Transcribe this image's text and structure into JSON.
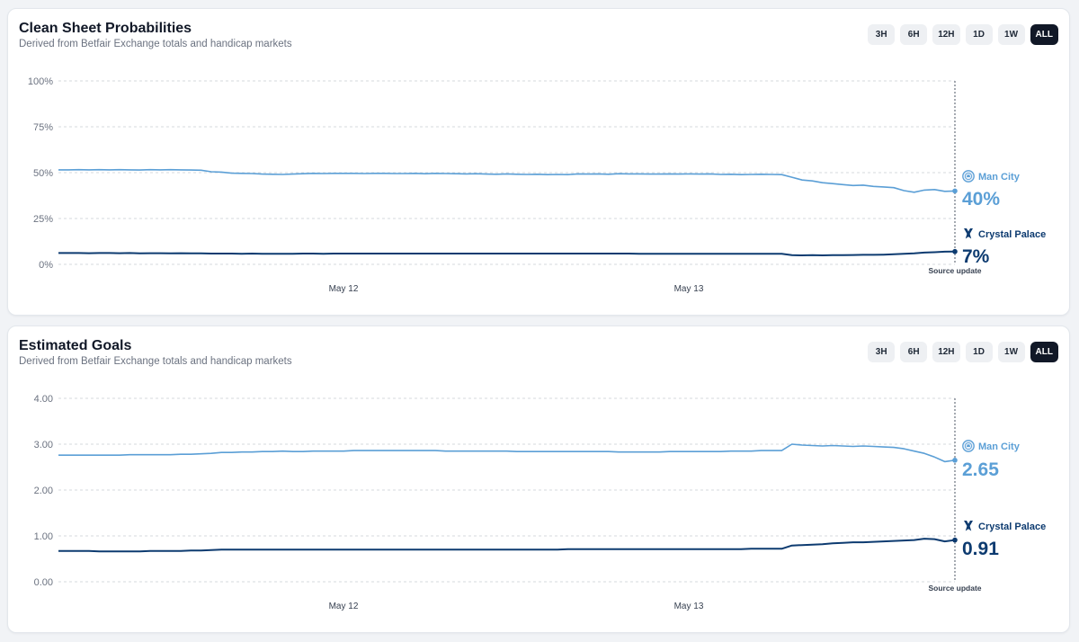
{
  "panels": [
    {
      "title": "Clean Sheet Probabilities",
      "subtitle": "Derived from Betfair Exchange totals and handicap markets",
      "ranges": [
        "3H",
        "6H",
        "12H",
        "1D",
        "1W",
        "ALL"
      ],
      "active_range": "ALL"
    },
    {
      "title": "Estimated Goals",
      "subtitle": "Derived from Betfair Exchange totals and handicap markets",
      "ranges": [
        "3H",
        "6H",
        "12H",
        "1D",
        "1W",
        "ALL"
      ],
      "active_range": "ALL"
    }
  ],
  "chart_data": [
    {
      "type": "line",
      "title": "Clean Sheet Probabilities",
      "subtitle": "Derived from Betfair Exchange totals and handicap markets",
      "x_ticks": [
        "May 12",
        "May 13"
      ],
      "y_ticks": [
        "0%",
        "25%",
        "50%",
        "75%",
        "100%"
      ],
      "ylim": [
        0,
        100
      ],
      "grid": true,
      "marker_label": "Source update",
      "series": [
        {
          "name": "Man City",
          "color": "#5b9fd6",
          "icon": "man-city-crest-icon",
          "current_label": "40%",
          "values": [
            51.5,
            51.5,
            51.6,
            51.5,
            51.6,
            51.5,
            51.6,
            51.5,
            51.4,
            51.6,
            51.5,
            51.6,
            51.5,
            51.4,
            51.3,
            50.5,
            50.3,
            49.7,
            49.6,
            49.5,
            49.2,
            49.1,
            49.0,
            49.2,
            49.4,
            49.6,
            49.5,
            49.6,
            49.6,
            49.6,
            49.5,
            49.6,
            49.6,
            49.5,
            49.5,
            49.6,
            49.4,
            49.6,
            49.5,
            49.4,
            49.3,
            49.4,
            49.2,
            49.1,
            49.3,
            49.1,
            49.0,
            49.1,
            48.9,
            49.0,
            48.9,
            49.3,
            49.2,
            49.3,
            49.1,
            49.4,
            49.3,
            49.3,
            49.2,
            49.2,
            49.3,
            49.2,
            49.3,
            49.2,
            49.3,
            49.0,
            49.1,
            48.9,
            49.0,
            49.1,
            49.0,
            48.9,
            47.5,
            46.0,
            45.5,
            44.5,
            44.0,
            43.5,
            43.0,
            43.2,
            42.5,
            42.2,
            41.8,
            40.2,
            39.3,
            40.5,
            40.8,
            39.8,
            40.0
          ]
        },
        {
          "name": "Crystal Palace",
          "color": "#0d3b70",
          "icon": "crystal-palace-crest-icon",
          "current_label": "7%",
          "values": [
            6.2,
            6.2,
            6.2,
            6.1,
            6.2,
            6.2,
            6.1,
            6.2,
            6.0,
            6.1,
            6.1,
            6.0,
            6.1,
            6.0,
            6.0,
            5.9,
            5.9,
            5.9,
            5.8,
            5.9,
            5.8,
            5.8,
            5.8,
            5.8,
            5.9,
            5.9,
            5.8,
            5.9,
            5.9,
            5.9,
            5.9,
            5.9,
            5.9,
            5.9,
            5.9,
            5.9,
            5.9,
            5.9,
            5.9,
            5.9,
            5.9,
            5.9,
            5.9,
            5.9,
            5.9,
            5.9,
            5.9,
            5.9,
            5.9,
            5.9,
            5.9,
            5.9,
            5.9,
            5.9,
            5.9,
            5.9,
            5.9,
            5.8,
            5.8,
            5.8,
            5.8,
            5.8,
            5.8,
            5.8,
            5.8,
            5.8,
            5.8,
            5.8,
            5.8,
            5.8,
            5.8,
            5.8,
            5.0,
            4.9,
            5.0,
            4.9,
            5.0,
            5.0,
            5.1,
            5.2,
            5.2,
            5.3,
            5.5,
            5.8,
            6.0,
            6.4,
            6.6,
            6.9,
            7.0
          ]
        }
      ]
    },
    {
      "type": "line",
      "title": "Estimated Goals",
      "subtitle": "Derived from Betfair Exchange totals and handicap markets",
      "x_ticks": [
        "May 12",
        "May 13"
      ],
      "y_ticks": [
        "0.00",
        "1.00",
        "2.00",
        "3.00",
        "4.00"
      ],
      "ylim": [
        0,
        4
      ],
      "grid": true,
      "marker_label": "Source update",
      "series": [
        {
          "name": "Man City",
          "color": "#5b9fd6",
          "icon": "man-city-crest-icon",
          "current_label": "2.65",
          "values": [
            2.76,
            2.76,
            2.76,
            2.76,
            2.76,
            2.76,
            2.76,
            2.77,
            2.77,
            2.77,
            2.77,
            2.77,
            2.78,
            2.78,
            2.79,
            2.8,
            2.82,
            2.82,
            2.83,
            2.83,
            2.84,
            2.84,
            2.85,
            2.84,
            2.84,
            2.85,
            2.85,
            2.85,
            2.85,
            2.86,
            2.86,
            2.86,
            2.86,
            2.86,
            2.86,
            2.86,
            2.86,
            2.86,
            2.85,
            2.85,
            2.85,
            2.85,
            2.85,
            2.85,
            2.85,
            2.84,
            2.84,
            2.84,
            2.84,
            2.84,
            2.84,
            2.84,
            2.84,
            2.84,
            2.84,
            2.83,
            2.83,
            2.83,
            2.83,
            2.83,
            2.84,
            2.84,
            2.84,
            2.84,
            2.84,
            2.84,
            2.85,
            2.85,
            2.85,
            2.86,
            2.86,
            2.86,
            3.0,
            2.98,
            2.97,
            2.96,
            2.97,
            2.96,
            2.95,
            2.96,
            2.95,
            2.94,
            2.93,
            2.9,
            2.85,
            2.8,
            2.72,
            2.62,
            2.65
          ]
        },
        {
          "name": "Crystal Palace",
          "color": "#0d3b70",
          "icon": "crystal-palace-crest-icon",
          "current_label": "0.91",
          "values": [
            0.67,
            0.67,
            0.67,
            0.67,
            0.66,
            0.66,
            0.66,
            0.66,
            0.66,
            0.67,
            0.67,
            0.67,
            0.67,
            0.68,
            0.68,
            0.69,
            0.7,
            0.7,
            0.7,
            0.7,
            0.7,
            0.7,
            0.7,
            0.7,
            0.7,
            0.7,
            0.7,
            0.7,
            0.7,
            0.7,
            0.7,
            0.7,
            0.7,
            0.7,
            0.7,
            0.7,
            0.7,
            0.7,
            0.7,
            0.7,
            0.7,
            0.7,
            0.7,
            0.7,
            0.7,
            0.7,
            0.7,
            0.7,
            0.7,
            0.7,
            0.71,
            0.71,
            0.71,
            0.71,
            0.71,
            0.71,
            0.71,
            0.71,
            0.71,
            0.71,
            0.71,
            0.71,
            0.71,
            0.71,
            0.71,
            0.71,
            0.71,
            0.71,
            0.72,
            0.72,
            0.72,
            0.72,
            0.79,
            0.8,
            0.81,
            0.82,
            0.84,
            0.85,
            0.86,
            0.86,
            0.87,
            0.88,
            0.89,
            0.9,
            0.91,
            0.94,
            0.93,
            0.88,
            0.91
          ]
        }
      ]
    }
  ]
}
